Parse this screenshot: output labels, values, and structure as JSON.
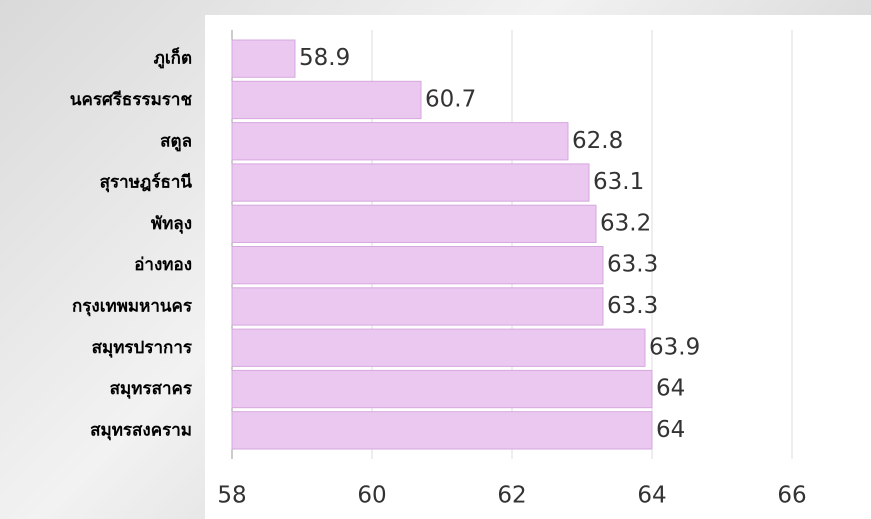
{
  "chart_data": {
    "type": "bar",
    "orientation": "horizontal",
    "categories": [
      "ภูเก็ต",
      "นครศรีธรรมราช",
      "สตูล",
      "สุราษฎร์ธานี",
      "พัทลุง",
      "อ่างทอง",
      "กรุงเทพมหานคร",
      "สมุทรปราการ",
      "สมุทรสาคร",
      "สมุทรสงคราม"
    ],
    "values": [
      58.9,
      60.7,
      62.8,
      63.1,
      63.2,
      63.3,
      63.3,
      63.9,
      64,
      64
    ],
    "color": "#eac8ef",
    "xlim": [
      58,
      66
    ],
    "xticks": [
      58,
      60,
      62,
      64,
      66
    ],
    "grid": true
  }
}
